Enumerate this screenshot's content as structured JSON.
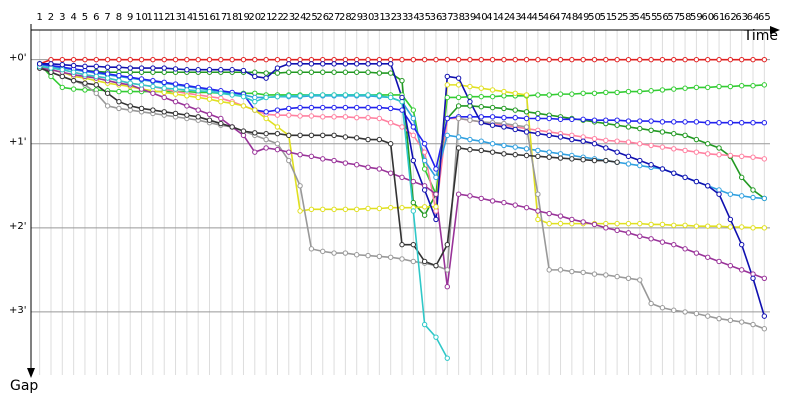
{
  "chart_data": {
    "type": "line",
    "x_label": "Time",
    "y_label": "Gap",
    "categories": [
      "1",
      "2",
      "3",
      "4",
      "5",
      "6",
      "7",
      "8",
      "9",
      "10",
      "11",
      "12",
      "13",
      "14",
      "15",
      "16",
      "17",
      "18",
      "19",
      "20",
      "21",
      "22",
      "23",
      "24",
      "25",
      "26",
      "27",
      "28",
      "29",
      "30",
      "31",
      "32",
      "33",
      "34",
      "35",
      "36",
      "37",
      "38",
      "39",
      "40",
      "41",
      "42",
      "43",
      "44",
      "45",
      "46",
      "47",
      "48",
      "49",
      "50",
      "51",
      "52",
      "53",
      "54",
      "55",
      "56",
      "57",
      "58",
      "59",
      "60",
      "61",
      "62",
      "63",
      "64",
      "65"
    ],
    "ylim": [
      -0.4,
      3.75
    ],
    "y_inverted": true,
    "grid": true,
    "yticks": [
      {
        "value": 0,
        "label": "+0'"
      },
      {
        "value": 1,
        "label": "+1'"
      },
      {
        "value": 2,
        "label": "+2'"
      },
      {
        "value": 3,
        "label": "+3'"
      }
    ],
    "series": [
      {
        "color": "#e02020",
        "values": [
          0.05,
          0,
          0,
          0,
          0,
          0,
          0,
          0,
          0,
          0,
          0,
          0,
          0,
          0,
          0,
          0,
          0,
          0,
          0,
          0,
          0,
          0,
          0,
          0,
          0,
          0,
          0,
          0,
          0,
          0,
          0,
          0,
          0,
          0,
          0,
          0,
          0,
          0,
          0,
          0,
          0,
          0,
          0,
          0,
          0,
          0,
          0,
          0,
          0,
          0,
          0,
          0,
          0,
          0,
          0,
          0,
          0,
          0,
          0,
          0,
          0,
          0,
          0,
          0,
          0
        ]
      },
      {
        "color": "#33cc33",
        "values": [
          0.05,
          0.2,
          0.33,
          0.35,
          0.36,
          0.36,
          0.37,
          0.38,
          0.38,
          0.38,
          0.38,
          0.38,
          0.38,
          0.38,
          0.39,
          0.39,
          0.4,
          0.4,
          0.4,
          0.4,
          0.42,
          0.42,
          0.42,
          0.42,
          0.42,
          0.42,
          0.42,
          0.42,
          0.42,
          0.42,
          0.42,
          0.42,
          0.42,
          0.6,
          1.3,
          1.6,
          0.45,
          0.45,
          0.44,
          0.44,
          0.44,
          0.43,
          0.43,
          0.43,
          0.42,
          0.42,
          0.41,
          0.41,
          0.4,
          0.4,
          0.39,
          0.39,
          0.38,
          0.38,
          0.37,
          0.36,
          0.35,
          0.34,
          0.33,
          0.33,
          0.32,
          0.32,
          0.31,
          0.31,
          0.3
        ]
      },
      {
        "color": "#229922",
        "values": [
          0.05,
          0.08,
          0.1,
          0.12,
          0.13,
          0.14,
          0.15,
          0.15,
          0.15,
          0.15,
          0.15,
          0.15,
          0.15,
          0.15,
          0.15,
          0.15,
          0.15,
          0.15,
          0.15,
          0.15,
          0.16,
          0.16,
          0.15,
          0.15,
          0.15,
          0.15,
          0.15,
          0.15,
          0.15,
          0.15,
          0.16,
          0.16,
          0.25,
          1.7,
          1.85,
          1.6,
          0.7,
          0.55,
          0.55,
          0.56,
          0.57,
          0.58,
          0.6,
          0.62,
          0.64,
          0.66,
          0.68,
          0.7,
          0.72,
          0.74,
          0.76,
          0.78,
          0.8,
          0.82,
          0.84,
          0.86,
          0.88,
          0.9,
          0.95,
          1.0,
          1.05,
          1.15,
          1.4,
          1.55,
          1.65
        ]
      },
      {
        "color": "#ff80a0",
        "values": [
          0.08,
          0.1,
          0.12,
          0.15,
          0.18,
          0.2,
          0.22,
          0.25,
          0.28,
          0.3,
          0.32,
          0.35,
          0.38,
          0.4,
          0.42,
          0.44,
          0.46,
          0.5,
          0.55,
          0.6,
          0.65,
          0.66,
          0.66,
          0.67,
          0.67,
          0.68,
          0.68,
          0.68,
          0.69,
          0.69,
          0.7,
          0.75,
          0.8,
          0.9,
          1.1,
          1.8,
          0.7,
          0.7,
          0.72,
          0.74,
          0.76,
          0.78,
          0.8,
          0.82,
          0.84,
          0.86,
          0.88,
          0.9,
          0.92,
          0.94,
          0.96,
          0.97,
          0.98,
          1.0,
          1.02,
          1.04,
          1.06,
          1.08,
          1.1,
          1.12,
          1.13,
          1.14,
          1.15,
          1.16,
          1.18
        ]
      },
      {
        "color": "#30a0e0",
        "values": [
          0.06,
          0.08,
          0.1,
          0.12,
          0.14,
          0.16,
          0.18,
          0.2,
          0.22,
          0.24,
          0.26,
          0.28,
          0.3,
          0.32,
          0.34,
          0.36,
          0.38,
          0.4,
          0.42,
          0.45,
          0.45,
          0.44,
          0.44,
          0.44,
          0.43,
          0.43,
          0.43,
          0.43,
          0.43,
          0.43,
          0.44,
          0.45,
          0.5,
          0.7,
          1.2,
          1.4,
          0.9,
          0.92,
          0.95,
          0.97,
          1.0,
          1.02,
          1.04,
          1.06,
          1.08,
          1.1,
          1.12,
          1.14,
          1.16,
          1.18,
          1.2,
          1.22,
          1.24,
          1.26,
          1.28,
          1.3,
          1.35,
          1.4,
          1.45,
          1.5,
          1.55,
          1.6,
          1.62,
          1.64,
          1.65
        ]
      },
      {
        "color": "#2222ee",
        "values": [
          0.05,
          0.07,
          0.09,
          0.11,
          0.13,
          0.15,
          0.17,
          0.19,
          0.21,
          0.23,
          0.25,
          0.27,
          0.29,
          0.31,
          0.33,
          0.35,
          0.37,
          0.39,
          0.41,
          0.6,
          0.62,
          0.6,
          0.58,
          0.57,
          0.57,
          0.57,
          0.57,
          0.57,
          0.57,
          0.57,
          0.57,
          0.58,
          0.6,
          0.8,
          1.0,
          1.3,
          0.7,
          0.68,
          0.68,
          0.68,
          0.68,
          0.69,
          0.69,
          0.7,
          0.7,
          0.7,
          0.71,
          0.71,
          0.71,
          0.72,
          0.72,
          0.72,
          0.73,
          0.73,
          0.73,
          0.74,
          0.74,
          0.74,
          0.74,
          0.75,
          0.75,
          0.75,
          0.75,
          0.75,
          0.75
        ]
      },
      {
        "color": "#e0e020",
        "values": [
          0.1,
          0.12,
          0.15,
          0.2,
          0.22,
          0.25,
          0.28,
          0.3,
          0.32,
          0.35,
          0.37,
          0.39,
          0.41,
          0.43,
          0.45,
          0.47,
          0.5,
          0.52,
          0.55,
          0.6,
          0.7,
          0.8,
          0.9,
          1.8,
          1.78,
          1.78,
          1.78,
          1.78,
          1.78,
          1.77,
          1.77,
          1.76,
          1.76,
          1.76,
          1.75,
          1.75,
          0.3,
          0.3,
          0.32,
          0.34,
          0.36,
          0.38,
          0.4,
          0.42,
          1.9,
          1.95,
          1.95,
          1.95,
          1.95,
          1.95,
          1.95,
          1.95,
          1.95,
          1.95,
          1.96,
          1.96,
          1.97,
          1.97,
          1.98,
          1.98,
          1.98,
          1.99,
          1.99,
          2.0,
          2.0
        ]
      },
      {
        "color": "#999999",
        "values": [
          0.1,
          0.15,
          0.2,
          0.25,
          0.3,
          0.4,
          0.55,
          0.58,
          0.6,
          0.62,
          0.64,
          0.66,
          0.68,
          0.7,
          0.72,
          0.75,
          0.78,
          0.8,
          0.85,
          0.9,
          0.95,
          1.0,
          1.2,
          1.5,
          2.25,
          2.28,
          2.3,
          2.3,
          2.32,
          2.33,
          2.34,
          2.35,
          2.37,
          2.4,
          2.42,
          2.45,
          2.5,
          0.7,
          0.72,
          0.74,
          0.75,
          0.76,
          0.78,
          0.8,
          1.6,
          2.5,
          2.5,
          2.52,
          2.53,
          2.55,
          2.56,
          2.58,
          2.6,
          2.62,
          2.9,
          2.95,
          2.98,
          3.0,
          3.02,
          3.05,
          3.08,
          3.1,
          3.12,
          3.15,
          3.2
        ]
      },
      {
        "color": "#993399",
        "values": [
          0.1,
          0.12,
          0.15,
          0.18,
          0.2,
          0.22,
          0.25,
          0.28,
          0.3,
          0.35,
          0.4,
          0.45,
          0.5,
          0.55,
          0.6,
          0.65,
          0.7,
          0.8,
          0.9,
          1.1,
          1.05,
          1.07,
          1.1,
          1.13,
          1.15,
          1.18,
          1.2,
          1.23,
          1.25,
          1.28,
          1.3,
          1.35,
          1.4,
          1.45,
          1.5,
          1.6,
          2.7,
          1.6,
          1.62,
          1.65,
          1.68,
          1.7,
          1.73,
          1.76,
          1.8,
          1.83,
          1.86,
          1.9,
          1.93,
          1.96,
          2.0,
          2.03,
          2.06,
          2.1,
          2.13,
          2.17,
          2.2,
          2.25,
          2.3,
          2.35,
          2.4,
          2.45,
          2.5,
          2.55,
          2.6
        ]
      },
      {
        "color": "#333333",
        "values": [
          0.1,
          0.15,
          0.2,
          0.25,
          0.28,
          0.3,
          0.4,
          0.5,
          0.55,
          0.58,
          0.6,
          0.62,
          0.64,
          0.66,
          0.68,
          0.72,
          0.76,
          0.8,
          0.85,
          0.87,
          0.88,
          0.88,
          0.9,
          0.9,
          0.9,
          0.9,
          0.9,
          0.92,
          0.93,
          0.95,
          0.95,
          1.0,
          2.2,
          2.2,
          2.4,
          2.45,
          2.2,
          1.05,
          1.07,
          1.08,
          1.1,
          1.12,
          1.13,
          1.14,
          1.15,
          1.16,
          1.17,
          1.18,
          1.19,
          1.2,
          1.2,
          1.22,
          null,
          null,
          null,
          null,
          null,
          null,
          null,
          null,
          null,
          null,
          null,
          null,
          null
        ]
      },
      {
        "color": "#30c8c8",
        "values": [
          0.08,
          0.1,
          0.12,
          0.15,
          0.18,
          0.2,
          0.22,
          0.25,
          0.28,
          0.3,
          0.32,
          0.34,
          0.35,
          0.36,
          0.37,
          0.38,
          0.4,
          0.42,
          0.44,
          0.5,
          0.45,
          0.44,
          0.43,
          0.43,
          0.42,
          0.42,
          0.42,
          0.42,
          0.42,
          0.42,
          0.43,
          0.45,
          0.5,
          1.8,
          3.15,
          3.3,
          3.55,
          null,
          null,
          null,
          null,
          null,
          null,
          null,
          null,
          null,
          null,
          null,
          null,
          null,
          null,
          null,
          null,
          null,
          null,
          null,
          null,
          null,
          null,
          null,
          null,
          null,
          null,
          null,
          null
        ]
      },
      {
        "color": "#1010b0",
        "values": [
          0.05,
          0.05,
          0.06,
          0.07,
          0.08,
          0.08,
          0.09,
          0.09,
          0.1,
          0.1,
          0.1,
          0.1,
          0.11,
          0.12,
          0.12,
          0.12,
          0.12,
          0.12,
          0.13,
          0.2,
          0.22,
          0.1,
          0.05,
          0.05,
          0.05,
          0.05,
          0.05,
          0.05,
          0.05,
          0.05,
          0.05,
          0.05,
          0.45,
          1.2,
          1.55,
          1.9,
          0.2,
          0.22,
          0.5,
          0.75,
          0.78,
          0.8,
          0.83,
          0.86,
          0.88,
          0.9,
          0.92,
          0.95,
          0.97,
          1.0,
          1.05,
          1.1,
          1.15,
          1.2,
          1.25,
          1.3,
          1.35,
          1.4,
          1.45,
          1.5,
          1.6,
          1.9,
          2.2,
          2.6,
          3.05
        ]
      }
    ]
  }
}
